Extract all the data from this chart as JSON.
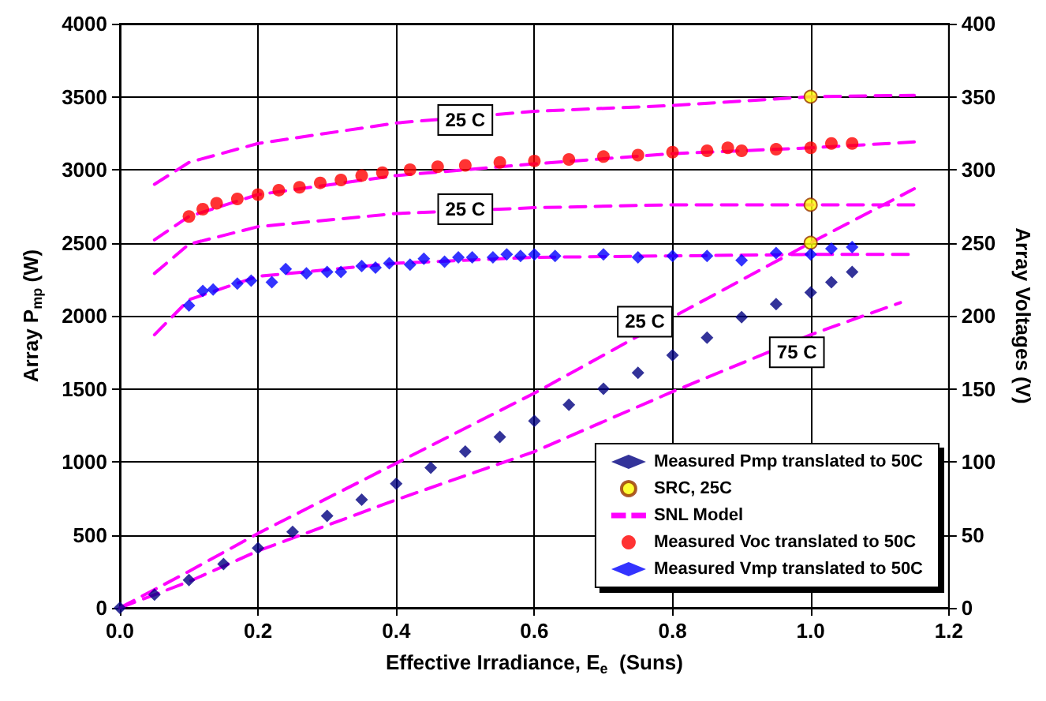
{
  "chart_data": {
    "type": "scatter",
    "xlabel": "Effective Irradiance, E$_{e}$  (Suns)",
    "ylabel": "Array P$_{mp}$ (W)",
    "y2label": "Array Voltages (V)",
    "xlim": [
      0,
      1.2
    ],
    "xticks": [
      {
        "value": 0,
        "label": "0.0"
      },
      0.2,
      0.4,
      0.6,
      0.8,
      {
        "value": 1,
        "label": "1.0"
      },
      1.2
    ],
    "ylim": [
      0,
      4000
    ],
    "yticks": [
      0,
      500,
      1000,
      1500,
      2000,
      2500,
      3000,
      3500,
      4000
    ],
    "y2lim": [
      0,
      400
    ],
    "y2ticks": [
      0,
      50,
      100,
      150,
      200,
      250,
      300,
      350,
      400
    ],
    "grid": true,
    "legend": "bottom right",
    "series": [
      {
        "name": "Measured Pmp translated to 50C",
        "type": "scatter",
        "marker": "diamond",
        "color": "#000080",
        "x": [
          0,
          0.05,
          0.1,
          0.15,
          0.2,
          0.25,
          0.3,
          0.35,
          0.4,
          0.45,
          0.5,
          0.55,
          0.6,
          0.65,
          0.7,
          0.75,
          0.8,
          0.85,
          0.9,
          0.95,
          1.0,
          1.03,
          1.06
        ],
        "values": [
          0,
          90,
          190,
          300,
          410,
          520,
          630,
          740,
          850,
          960,
          1070,
          1170,
          1280,
          1390,
          1500,
          1610,
          1730,
          1850,
          1990,
          2080,
          2160,
          2230,
          2300
        ]
      },
      {
        "name": "SRC, 25C",
        "type": "scatter",
        "marker": "circle",
        "color": "#ffff00",
        "axis": "y2",
        "x": [
          1.0,
          1.0,
          1.0
        ],
        "values": [
          350,
          276,
          250
        ]
      },
      {
        "name": "SNL Model",
        "type": "line",
        "marker": "none",
        "line_style": "dashed",
        "color": "#ff00ff",
        "axis": "y2",
        "x": [
          0.05,
          0.1,
          0.2,
          0.4,
          0.6,
          0.8,
          1.0,
          1.15
        ],
        "values": [
          290,
          305,
          318,
          332,
          340,
          344,
          350,
          351
        ]
      },
      {
        "type": "line",
        "marker": "none",
        "line_style": "dashed",
        "color": "#ff00ff",
        "axis": "y2",
        "x": [
          0.05,
          0.1,
          0.2,
          0.4,
          0.6,
          0.8,
          1.0,
          1.15
        ],
        "values": [
          252,
          268,
          283,
          296,
          304,
          311,
          315,
          319
        ]
      },
      {
        "type": "line",
        "marker": "none",
        "line_style": "dashed",
        "color": "#ff00ff",
        "axis": "y2",
        "x": [
          0.05,
          0.1,
          0.2,
          0.4,
          0.6,
          0.8,
          1.0,
          1.15
        ],
        "values": [
          229,
          249,
          261,
          270,
          274,
          276,
          276,
          276
        ]
      },
      {
        "type": "line",
        "marker": "none",
        "line_style": "dashed",
        "color": "#ff00ff",
        "axis": "y2",
        "x": [
          0.05,
          0.1,
          0.2,
          0.4,
          0.6,
          0.8,
          1.0,
          1.15
        ],
        "values": [
          187,
          211,
          227,
          236,
          240,
          241,
          242,
          242
        ]
      },
      {
        "type": "line",
        "marker": "none",
        "line_style": "dashed",
        "color": "#ff00ff",
        "x": [
          0,
          0.1,
          0.2,
          0.4,
          0.6,
          0.8,
          1.0,
          1.15
        ],
        "values": [
          0,
          250,
          510,
          990,
          1470,
          1990,
          2500,
          2870
        ]
      },
      {
        "type": "line",
        "marker": "none",
        "line_style": "dashed",
        "color": "#ff00ff",
        "x": [
          0,
          0.1,
          0.2,
          0.4,
          0.6,
          0.8,
          1.0,
          1.13
        ],
        "values": [
          0,
          180,
          390,
          740,
          1070,
          1480,
          1870,
          2090
        ]
      },
      {
        "name": "Measured Voc translated to 50C",
        "type": "scatter",
        "marker": "circle",
        "color": "#ff0000",
        "axis": "y2",
        "x": [
          0.1,
          0.12,
          0.14,
          0.17,
          0.2,
          0.23,
          0.26,
          0.29,
          0.32,
          0.35,
          0.38,
          0.42,
          0.46,
          0.5,
          0.55,
          0.6,
          0.65,
          0.7,
          0.75,
          0.8,
          0.85,
          0.88,
          0.9,
          0.95,
          1.0,
          1.03,
          1.06
        ],
        "values": [
          268,
          273,
          277,
          280,
          283,
          286,
          288,
          291,
          293,
          296,
          298,
          300,
          302,
          303,
          305,
          306,
          307,
          309,
          310,
          312,
          313,
          315,
          313,
          314,
          315,
          318,
          318
        ]
      },
      {
        "name": "Measured Vmp translated to 50C",
        "type": "scatter",
        "marker": "diamond",
        "color": "#0000ff",
        "axis": "y2",
        "x": [
          0.1,
          0.12,
          0.135,
          0.17,
          0.19,
          0.22,
          0.24,
          0.27,
          0.3,
          0.32,
          0.35,
          0.37,
          0.39,
          0.42,
          0.44,
          0.47,
          0.49,
          0.51,
          0.54,
          0.56,
          0.58,
          0.6,
          0.63,
          0.7,
          0.75,
          0.8,
          0.85,
          0.9,
          0.95,
          1.0,
          1.03,
          1.06
        ],
        "values": [
          207,
          217,
          218,
          222,
          224,
          223,
          232,
          229,
          230,
          230,
          234,
          233,
          236,
          235,
          239,
          237,
          240,
          240,
          240,
          242,
          241,
          242,
          241,
          242,
          240,
          241,
          241,
          238,
          243,
          242,
          246,
          247
        ]
      }
    ],
    "annotations": [
      {
        "text": "25 C",
        "x": 0.5,
        "y": 3340
      },
      {
        "text": "25 C",
        "x": 0.5,
        "y": 2730
      },
      {
        "text": "25 C",
        "x": 0.76,
        "y": 1960
      },
      {
        "text": "75 C",
        "x": 0.98,
        "y": 1750
      }
    ]
  }
}
